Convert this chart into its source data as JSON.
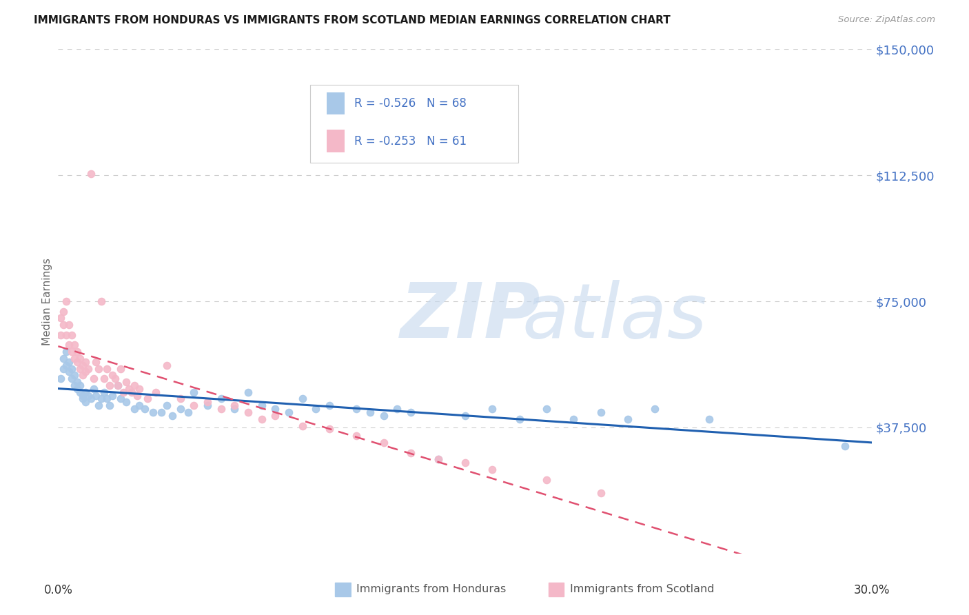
{
  "title": "IMMIGRANTS FROM HONDURAS VS IMMIGRANTS FROM SCOTLAND MEDIAN EARNINGS CORRELATION CHART",
  "source": "Source: ZipAtlas.com",
  "ylabel": "Median Earnings",
  "yticks": [
    0,
    37500,
    75000,
    112500,
    150000
  ],
  "ytick_labels": [
    "",
    "$37,500",
    "$75,000",
    "$112,500",
    "$150,000"
  ],
  "xmin": 0.0,
  "xmax": 0.3,
  "ymin": 0,
  "ymax": 150000,
  "legend_r1": "-0.526",
  "legend_n1": "68",
  "legend_r2": "-0.253",
  "legend_n2": "61",
  "color_honduras": "#a8c8e8",
  "color_scotland": "#f4b8c8",
  "color_blue_text": "#4472c4",
  "honduras_x": [
    0.001,
    0.002,
    0.002,
    0.003,
    0.003,
    0.004,
    0.004,
    0.005,
    0.005,
    0.006,
    0.006,
    0.007,
    0.007,
    0.008,
    0.008,
    0.009,
    0.009,
    0.01,
    0.01,
    0.011,
    0.012,
    0.013,
    0.014,
    0.015,
    0.016,
    0.017,
    0.018,
    0.019,
    0.02,
    0.022,
    0.023,
    0.025,
    0.028,
    0.03,
    0.032,
    0.035,
    0.038,
    0.04,
    0.042,
    0.045,
    0.048,
    0.05,
    0.055,
    0.06,
    0.065,
    0.07,
    0.075,
    0.08,
    0.085,
    0.09,
    0.095,
    0.1,
    0.11,
    0.115,
    0.12,
    0.125,
    0.13,
    0.14,
    0.15,
    0.16,
    0.17,
    0.18,
    0.19,
    0.2,
    0.21,
    0.22,
    0.24,
    0.29
  ],
  "honduras_y": [
    52000,
    58000,
    55000,
    56000,
    60000,
    57000,
    54000,
    52000,
    55000,
    50000,
    53000,
    51000,
    49000,
    50000,
    48000,
    47000,
    46000,
    48000,
    45000,
    47000,
    46000,
    49000,
    47000,
    44000,
    46000,
    48000,
    46000,
    44000,
    47000,
    50000,
    46000,
    45000,
    43000,
    44000,
    43000,
    42000,
    42000,
    44000,
    41000,
    43000,
    42000,
    48000,
    44000,
    46000,
    43000,
    48000,
    44000,
    43000,
    42000,
    46000,
    43000,
    44000,
    43000,
    42000,
    41000,
    43000,
    42000,
    28000,
    41000,
    43000,
    40000,
    43000,
    40000,
    42000,
    40000,
    43000,
    40000,
    32000
  ],
  "scotland_x": [
    0.001,
    0.001,
    0.002,
    0.002,
    0.003,
    0.003,
    0.004,
    0.004,
    0.005,
    0.005,
    0.006,
    0.006,
    0.007,
    0.007,
    0.008,
    0.008,
    0.009,
    0.009,
    0.01,
    0.01,
    0.011,
    0.012,
    0.013,
    0.014,
    0.015,
    0.016,
    0.017,
    0.018,
    0.019,
    0.02,
    0.021,
    0.022,
    0.023,
    0.024,
    0.025,
    0.026,
    0.027,
    0.028,
    0.029,
    0.03,
    0.033,
    0.036,
    0.04,
    0.045,
    0.05,
    0.055,
    0.06,
    0.065,
    0.07,
    0.075,
    0.08,
    0.09,
    0.1,
    0.11,
    0.12,
    0.13,
    0.14,
    0.15,
    0.16,
    0.18,
    0.2
  ],
  "scotland_y": [
    65000,
    70000,
    68000,
    72000,
    65000,
    75000,
    62000,
    68000,
    60000,
    65000,
    58000,
    62000,
    57000,
    60000,
    55000,
    58000,
    56000,
    53000,
    57000,
    54000,
    55000,
    113000,
    52000,
    57000,
    55000,
    75000,
    52000,
    55000,
    50000,
    53000,
    52000,
    50000,
    55000,
    48000,
    51000,
    49000,
    48000,
    50000,
    47000,
    49000,
    46000,
    48000,
    56000,
    46000,
    44000,
    45000,
    43000,
    44000,
    42000,
    40000,
    41000,
    38000,
    37000,
    35000,
    33000,
    30000,
    28000,
    27000,
    25000,
    22000,
    18000
  ]
}
